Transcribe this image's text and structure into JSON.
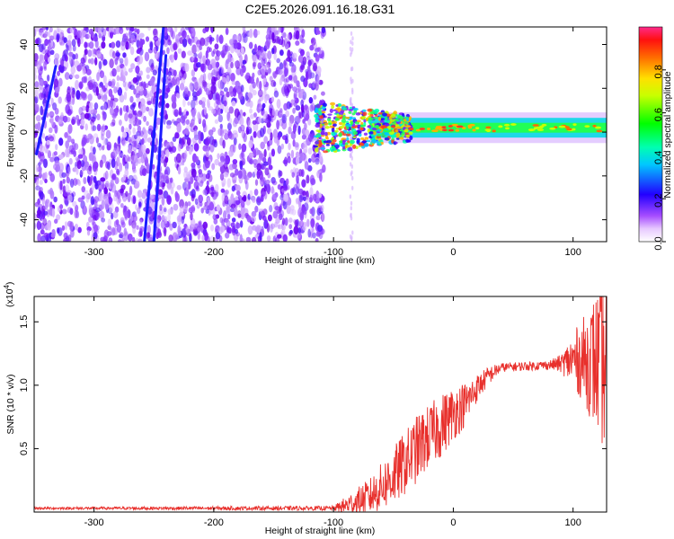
{
  "title": "C2E5.2026.091.16.18.G31",
  "chart_data": [
    {
      "type": "heatmap",
      "name": "spectrogram",
      "xlabel": "Height of straight line (km)",
      "ylabel": "Frequency (Hz)",
      "xlim": [
        -350,
        128
      ],
      "ylim": [
        -50,
        48
      ],
      "xticks": [
        -300,
        -200,
        -100,
        0,
        100
      ],
      "yticks": [
        -40,
        -20,
        0,
        20,
        40
      ],
      "colorbar": {
        "label": "Normalized spectral amplitude",
        "range": [
          0,
          1
        ],
        "ticks": [
          0.0,
          0.2,
          0.4,
          0.6,
          0.8
        ]
      },
      "noise_region_x": [
        -350,
        -108
      ],
      "signal_band": {
        "x": [
          -115,
          128
        ],
        "center_hz": 2,
        "half_width_hz": 5
      },
      "streaks": [
        {
          "x": [
            -348,
            -332
          ],
          "y": [
            -10,
            30
          ]
        },
        {
          "x": [
            -258,
            -242
          ],
          "y": [
            -50,
            48
          ]
        },
        {
          "x": [
            -250,
            -240
          ],
          "y": [
            -50,
            35
          ]
        }
      ]
    },
    {
      "type": "line",
      "name": "snr",
      "xlabel": "Height of straight line (km)",
      "ylabel": "SNR (10 * v/v)",
      "yscale_label": "(x10",
      "yscale_exp": "4",
      "yscale_close": ")",
      "xlim": [
        -350,
        128
      ],
      "ylim": [
        0,
        1.7
      ],
      "xticks": [
        -300,
        -200,
        -100,
        0,
        100
      ],
      "yticks": [
        0.5,
        1.0,
        1.5
      ],
      "yticklabels": [
        "0.5",
        "1.0",
        "1.5"
      ],
      "color": "#e8302c",
      "series_envelope": {
        "x": [
          -350,
          -100,
          -90,
          -70,
          -50,
          -30,
          -20,
          -10,
          0,
          10,
          20,
          30,
          40,
          60,
          80,
          90,
          100,
          110,
          120,
          128
        ],
        "y": [
          0.03,
          0.03,
          0.05,
          0.12,
          0.28,
          0.5,
          0.6,
          0.68,
          0.78,
          0.85,
          0.98,
          1.08,
          1.14,
          1.15,
          1.16,
          1.17,
          1.2,
          1.2,
          1.18,
          1.15
        ],
        "noise": [
          0.005,
          0.01,
          0.04,
          0.08,
          0.13,
          0.15,
          0.14,
          0.14,
          0.12,
          0.1,
          0.06,
          0.04,
          0.02,
          0.02,
          0.02,
          0.04,
          0.12,
          0.2,
          0.32,
          0.4
        ]
      }
    }
  ]
}
